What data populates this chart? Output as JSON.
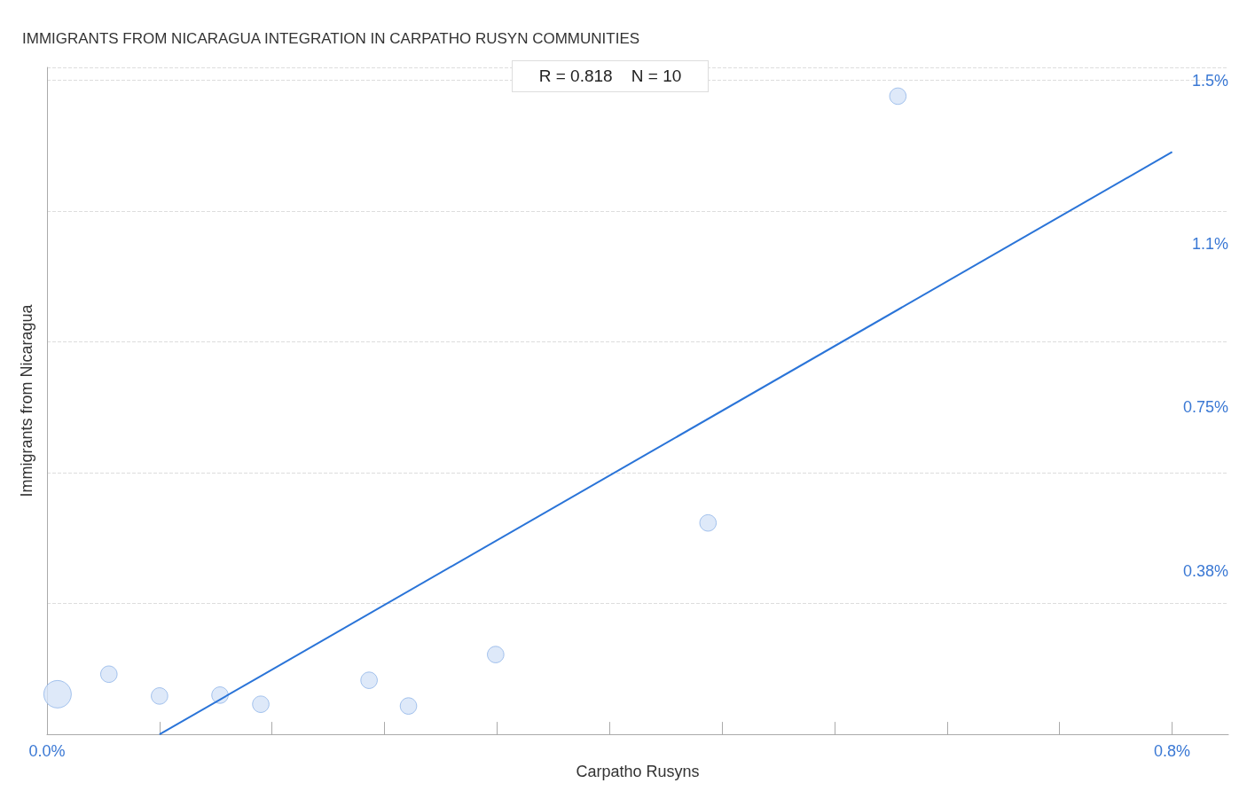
{
  "chart_data": {
    "type": "bubble",
    "title": "IMMIGRANTS FROM NICARAGUA INTEGRATION IN CARPATHO RUSYN COMMUNITIES",
    "xlabel": "Carpatho Rusyns",
    "ylabel": "Immigrants from Nicaragua",
    "annotations": [
      "R = 0.818    N = 10"
    ],
    "xlim": [
      0,
      0.84
    ],
    "ylim": [
      0,
      1.53
    ],
    "xticks": [
      {
        "value": 0,
        "label": "0.0%"
      },
      {
        "value": 0.08,
        "label": null
      },
      {
        "value": 0.16,
        "label": null
      },
      {
        "value": 0.24,
        "label": null
      },
      {
        "value": 0.32,
        "label": null
      },
      {
        "value": 0.4,
        "label": null
      },
      {
        "value": 0.48,
        "label": null
      },
      {
        "value": 0.56,
        "label": null
      },
      {
        "value": 0.64,
        "label": null
      },
      {
        "value": 0.72,
        "label": null
      },
      {
        "value": 0.8,
        "label": "0.8%"
      }
    ],
    "yticks": [
      {
        "value": 0.375,
        "label": "0.38%"
      },
      {
        "value": 0.75,
        "label": "0.75%"
      },
      {
        "value": 1.125,
        "label": "1.1%"
      },
      {
        "value": 1.5,
        "label": "1.5%"
      }
    ],
    "grid": "y",
    "series": [
      {
        "type": "bubble",
        "marker": "circle",
        "color": "#d6e4f8",
        "x": [
          0.0075,
          0.044,
          0.08,
          0.123,
          0.152,
          0.229,
          0.257,
          0.319,
          0.47,
          0.605
        ],
        "values": [
          0.092,
          0.138,
          0.088,
          0.09,
          0.069,
          0.124,
          0.065,
          0.183,
          0.485,
          1.464
        ],
        "sizes": [
          1,
          0.36,
          0.36,
          0.36,
          0.36,
          0.36,
          0.36,
          0.36,
          0.36,
          0.36
        ]
      },
      {
        "type": "line",
        "color": "#2a74d8",
        "x": [
          0.08,
          0.8
        ],
        "values": [
          0,
          1.336
        ]
      }
    ]
  }
}
